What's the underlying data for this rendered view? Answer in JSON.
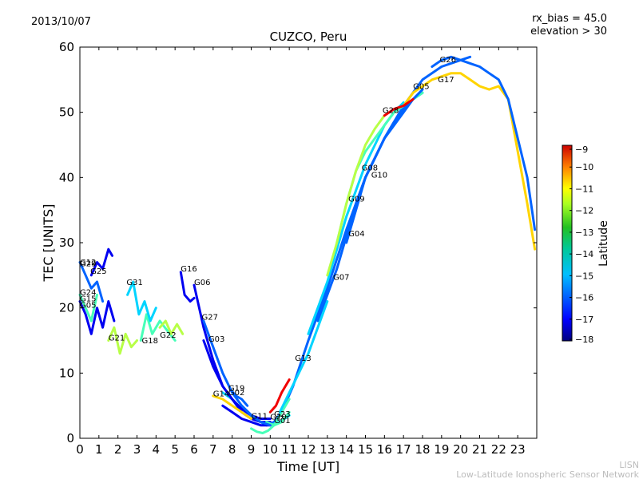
{
  "header": {
    "date": "2013/10/07",
    "rx_bias": "rx_bias = 45.0",
    "elevation": "elevation > 30"
  },
  "footer": {
    "line1": "LISN",
    "line2": "Low-Latitude Ionospheric Sensor Network"
  },
  "chart_data": {
    "type": "scatter",
    "title": "CUZCO, Peru",
    "xlabel": "Time [UT]",
    "ylabel": "TEC [UNITS]",
    "xlim": [
      0,
      24
    ],
    "ylim": [
      0,
      60
    ],
    "xticks": [
      0,
      1,
      2,
      3,
      4,
      5,
      6,
      7,
      8,
      9,
      10,
      11,
      12,
      13,
      14,
      15,
      16,
      17,
      18,
      19,
      20,
      21,
      22,
      23
    ],
    "yticks": [
      0,
      10,
      20,
      30,
      40,
      50,
      60
    ],
    "colorbar": {
      "label": "Latitude",
      "min": -18,
      "max": -9,
      "ticks": [
        -9,
        -10,
        -11,
        -12,
        -13,
        -14,
        -15,
        -16,
        -17,
        -18
      ],
      "colors": [
        "#00007f",
        "#0000ff",
        "#007fff",
        "#00ffff",
        "#7fff7f",
        "#ffff00",
        "#ff7f00",
        "#ff0000",
        "#7f0000"
      ]
    },
    "series": [
      {
        "name": "G01",
        "lat": -16,
        "x": [
          8.5,
          9.2,
          9.8,
          10.2,
          10.6,
          11.2,
          12.0,
          13.0,
          14.0,
          15.0,
          16.0,
          17.0,
          18.0,
          19.0,
          20.0,
          20.5
        ],
        "y": [
          5.0,
          3.0,
          2.0,
          2.5,
          4.0,
          8.0,
          15.0,
          23.0,
          32.0,
          40.0,
          46.0,
          51.0,
          55.0,
          57.0,
          58.0,
          58.5
        ]
      },
      {
        "name": "G02",
        "lat": -15,
        "x": [
          7.5,
          8.0,
          8.5,
          9.0,
          9.5,
          10.0,
          10.5,
          11.0
        ],
        "y": [
          7.0,
          6.0,
          4.5,
          3.5,
          2.5,
          2.0,
          2.5,
          3.5
        ]
      },
      {
        "name": "G03",
        "lat": -17,
        "x": [
          6.5,
          7.0,
          7.5,
          8.0,
          8.5,
          9.0,
          9.5,
          10.0
        ],
        "y": [
          15.0,
          11.0,
          8.0,
          6.0,
          4.5,
          3.5,
          3.0,
          3.0
        ]
      },
      {
        "name": "G04",
        "lat": -16,
        "x": [
          12.5,
          13.0,
          13.5,
          14.0,
          14.5,
          15.0,
          15.5,
          16.0,
          16.5,
          17.0,
          17.5,
          18.0
        ],
        "y": [
          18.0,
          22.0,
          26.0,
          31.0,
          36.0,
          40.0,
          43.0,
          46.0,
          48.0,
          50.0,
          52.0,
          53.0
        ]
      },
      {
        "name": "G05",
        "lat": -17,
        "x": [
          0.0,
          0.3,
          0.6,
          0.9,
          1.2,
          1.5,
          1.8
        ],
        "y": [
          21.0,
          19.0,
          16.0,
          20.0,
          17.0,
          21.0,
          18.0
        ]
      },
      {
        "name": "G06",
        "lat": -17,
        "x": [
          6.0,
          6.5,
          7.0,
          7.5,
          8.0,
          8.5,
          9.0,
          9.5,
          10.0
        ],
        "y": [
          23.5,
          17.0,
          12.0,
          8.0,
          6.0,
          4.0,
          3.0,
          2.5,
          2.5
        ]
      },
      {
        "name": "G07",
        "lat": -15,
        "x": [
          12.0,
          12.5,
          13.0,
          13.5,
          14.0,
          14.5,
          15.0,
          15.5,
          16.0,
          16.5,
          17.0
        ],
        "y": [
          16.0,
          20.0,
          24.0,
          29.0,
          34.0,
          38.0,
          42.0,
          45.0,
          48.0,
          50.0,
          51.5
        ]
      },
      {
        "name": "G08",
        "lat": -14,
        "x": [
          13.5,
          14.0,
          14.5,
          15.0,
          15.5,
          16.0,
          16.5,
          17.0,
          17.5,
          18.0
        ],
        "y": [
          30.0,
          36.0,
          41.0,
          44.0,
          46.0,
          48.0,
          50.0,
          51.0,
          52.0,
          53.0
        ]
      },
      {
        "name": "G09",
        "lat": -13,
        "x": [
          13.0,
          13.5,
          14.0,
          14.5,
          15.0,
          15.5,
          16.0
        ],
        "y": [
          25.0,
          30.0,
          36.0,
          41.0,
          45.0,
          47.5,
          49.5
        ]
      },
      {
        "name": "G10",
        "lat": -16,
        "x": [
          14.0,
          14.5,
          15.0,
          15.5,
          16.0,
          16.5,
          17.0,
          17.5,
          18.0
        ],
        "y": [
          30.0,
          35.0,
          40.0,
          43.0,
          46.0,
          48.5,
          50.5,
          52.0,
          53.5
        ]
      },
      {
        "name": "G11",
        "lat": -14,
        "x": [
          9.0,
          9.3,
          9.6,
          9.9,
          10.2,
          10.5,
          11.0
        ],
        "y": [
          1.5,
          1.0,
          0.8,
          1.2,
          2.0,
          3.5,
          6.0
        ]
      },
      {
        "name": "G12",
        "lat": -16,
        "x": [
          0.0,
          0.3,
          0.6,
          0.9,
          1.2
        ],
        "y": [
          27.0,
          25.0,
          23.0,
          24.0,
          21.0
        ]
      },
      {
        "name": "G13",
        "lat": -15,
        "x": [
          10.5,
          11.0,
          11.5,
          12.0,
          12.5,
          13.0
        ],
        "y": [
          4.0,
          7.0,
          10.0,
          13.0,
          17.0,
          21.0
        ]
      },
      {
        "name": "G14",
        "lat": -12,
        "x": [
          7.0,
          7.5,
          8.0,
          8.5,
          9.0
        ],
        "y": [
          6.5,
          6.0,
          5.0,
          4.0,
          3.0
        ]
      },
      {
        "name": "G15",
        "lat": -17,
        "x": [
          7.5,
          8.0,
          8.5,
          9.0,
          9.5,
          10.0
        ],
        "y": [
          5.0,
          4.0,
          3.0,
          2.5,
          2.0,
          2.0
        ]
      },
      {
        "name": "G16",
        "lat": -17,
        "x": [
          5.3,
          5.5,
          5.8,
          6.0
        ],
        "y": [
          25.5,
          22.0,
          21.0,
          21.5
        ]
      },
      {
        "name": "G17",
        "lat": -12,
        "x": [
          17.0,
          17.5,
          18.0,
          18.5,
          19.0,
          19.5,
          20.0,
          20.5,
          21.0,
          21.5,
          22.0,
          22.5,
          23.0,
          23.5,
          23.9
        ],
        "y": [
          51.0,
          53.0,
          54.0,
          55.0,
          55.5,
          56.0,
          56.0,
          55.0,
          54.0,
          53.5,
          54.0,
          52.0,
          44.0,
          36.0,
          29.0
        ]
      },
      {
        "name": "G18",
        "lat": -14,
        "x": [
          3.2,
          3.5,
          3.8,
          4.2,
          4.6,
          5.0
        ],
        "y": [
          15.0,
          19.0,
          16.0,
          18.0,
          16.5,
          15.0
        ]
      },
      {
        "name": "G19",
        "lat": -16,
        "x": [
          7.9,
          8.2,
          8.5,
          8.8
        ],
        "y": [
          7.5,
          6.5,
          6.0,
          5.0
        ]
      },
      {
        "name": "G20",
        "lat": -14,
        "x": [
          9.8,
          10.2,
          10.6,
          11.0
        ],
        "y": [
          2.5,
          2.0,
          2.5,
          4.0
        ]
      },
      {
        "name": "G21",
        "lat": -13,
        "x": [
          1.5,
          1.8,
          2.1,
          2.4,
          2.7,
          3.0
        ],
        "y": [
          15.0,
          17.0,
          13.0,
          16.0,
          14.0,
          15.0
        ]
      },
      {
        "name": "G22",
        "lat": -13,
        "x": [
          4.2,
          4.5,
          4.8,
          5.1,
          5.4
        ],
        "y": [
          17.0,
          18.0,
          16.0,
          17.5,
          16.0
        ]
      },
      {
        "name": "G23",
        "lat": -10,
        "x": [
          10.0,
          10.3,
          10.6,
          11.0
        ],
        "y": [
          4.0,
          5.0,
          7.0,
          9.0
        ]
      },
      {
        "name": "G24",
        "lat": -14,
        "x": [
          0.0,
          0.3,
          0.6,
          0.9
        ],
        "y": [
          22.0,
          20.0,
          18.0,
          22.0
        ]
      },
      {
        "name": "G25",
        "lat": -17,
        "x": [
          0.6,
          0.9,
          1.2,
          1.5,
          1.7
        ],
        "y": [
          25.0,
          27.0,
          26.0,
          29.0,
          28.0
        ]
      },
      {
        "name": "G26",
        "lat": -16,
        "x": [
          18.5,
          19.0,
          19.5,
          20.0,
          20.5,
          21.0,
          21.5,
          22.0,
          22.5,
          23.0,
          23.5,
          23.9
        ],
        "y": [
          57.0,
          58.0,
          58.5,
          58.0,
          57.5,
          57.0,
          56.0,
          55.0,
          52.0,
          46.0,
          40.0,
          32.0
        ]
      },
      {
        "name": "G27",
        "lat": -16,
        "x": [
          6.5,
          7.0,
          7.5,
          8.0,
          8.5,
          9.0,
          9.5,
          10.0
        ],
        "y": [
          18.0,
          14.0,
          10.0,
          7.0,
          5.0,
          3.5,
          2.5,
          2.0
        ]
      },
      {
        "name": "G28",
        "lat": -10,
        "x": [
          16.0,
          16.5,
          17.0,
          17.5
        ],
        "y": [
          49.5,
          50.5,
          51.0,
          52.0
        ]
      },
      {
        "name": "G31",
        "lat": -15,
        "x": [
          2.5,
          2.8,
          3.1,
          3.4,
          3.7,
          4.0
        ],
        "y": [
          22.0,
          24.0,
          19.0,
          21.0,
          18.0,
          20.0
        ]
      }
    ],
    "labels": [
      {
        "text": "G12",
        "x": 0.0,
        "y": 26.6
      },
      {
        "text": "G29",
        "x": 0.0,
        "y": 26.4
      },
      {
        "text": "G25",
        "x": 0.55,
        "y": 25.2
      },
      {
        "text": "G31",
        "x": 2.45,
        "y": 23.5
      },
      {
        "text": "G24",
        "x": 0.0,
        "y": 22.0
      },
      {
        "text": "G15",
        "x": 0.0,
        "y": 21.0
      },
      {
        "text": "G05",
        "x": 0.0,
        "y": 20.0
      },
      {
        "text": "G16",
        "x": 5.3,
        "y": 25.6
      },
      {
        "text": "G06",
        "x": 6.0,
        "y": 23.5
      },
      {
        "text": "G27",
        "x": 6.4,
        "y": 18.2
      },
      {
        "text": "G03",
        "x": 6.75,
        "y": 14.8
      },
      {
        "text": "G21",
        "x": 1.5,
        "y": 15.0
      },
      {
        "text": "G18",
        "x": 3.25,
        "y": 14.6
      },
      {
        "text": "G22",
        "x": 4.2,
        "y": 15.4
      },
      {
        "text": "G19",
        "x": 7.8,
        "y": 7.3
      },
      {
        "text": "G02",
        "x": 7.8,
        "y": 6.6
      },
      {
        "text": "G14",
        "x": 7.0,
        "y": 6.4
      },
      {
        "text": "G11",
        "x": 9.0,
        "y": 3.0
      },
      {
        "text": "G23",
        "x": 10.2,
        "y": 3.3
      },
      {
        "text": "G20",
        "x": 10.0,
        "y": 2.9
      },
      {
        "text": "G01",
        "x": 10.2,
        "y": 2.3
      },
      {
        "text": "G13",
        "x": 11.3,
        "y": 11.9
      },
      {
        "text": "G07",
        "x": 13.3,
        "y": 24.3
      },
      {
        "text": "G04",
        "x": 14.1,
        "y": 31.0
      },
      {
        "text": "G09",
        "x": 14.1,
        "y": 36.3
      },
      {
        "text": "G08",
        "x": 14.8,
        "y": 41.1
      },
      {
        "text": "G10",
        "x": 15.3,
        "y": 40.0
      },
      {
        "text": "G28",
        "x": 15.9,
        "y": 49.9
      },
      {
        "text": "G05",
        "x": 17.5,
        "y": 53.6
      },
      {
        "text": "G17",
        "x": 18.8,
        "y": 54.6
      },
      {
        "text": "G26",
        "x": 18.9,
        "y": 57.7
      }
    ]
  }
}
